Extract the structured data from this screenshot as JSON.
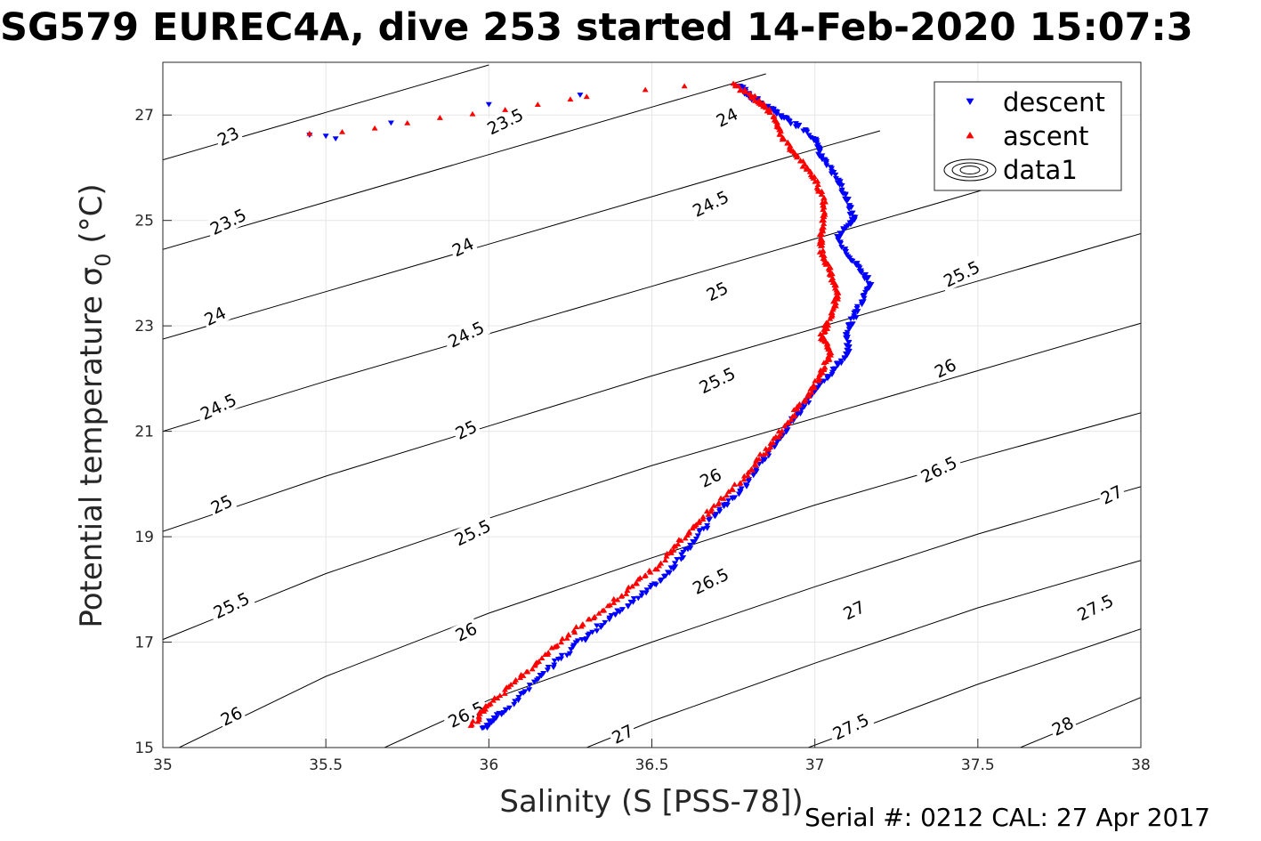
{
  "title": "SG579 EUREC4A, dive 253 started 14-Feb-2020 15:07:3",
  "footer": "Serial #: 0212  CAL: 27 Apr 2017",
  "colors": {
    "descent": "#0000ff",
    "ascent": "#ff0000",
    "contour": "#000000",
    "grid": "#e6e6e6"
  },
  "chart_data": {
    "type": "scatter",
    "xlabel": "Salinity (S [PSS-78])",
    "ylabel_main": "Potential temperature σ",
    "ylabel_sub": "0",
    "ylabel_unit": " (°C)",
    "xlim": [
      35,
      38
    ],
    "ylim": [
      15,
      28
    ],
    "xticks": [
      35,
      35.5,
      36,
      36.5,
      37,
      37.5,
      38
    ],
    "yticks": [
      15,
      17,
      19,
      21,
      23,
      25,
      27
    ],
    "xtick_labels": [
      "35",
      "35.5",
      "36",
      "36.5",
      "37",
      "37.5",
      "38"
    ],
    "ytick_labels": [
      "15",
      "17",
      "19",
      "21",
      "23",
      "25",
      "27"
    ],
    "grid": true,
    "legend": {
      "position": "top-right",
      "entries": [
        "descent",
        "ascent",
        "data1"
      ]
    },
    "contours": [
      {
        "level": 23,
        "points": [
          [
            35.0,
            26.15
          ],
          [
            35.5,
            27.05
          ],
          [
            36.0,
            27.95
          ]
        ]
      },
      {
        "level": 23.5,
        "points": [
          [
            35.0,
            24.45
          ],
          [
            35.5,
            25.35
          ],
          [
            36.0,
            26.25
          ],
          [
            36.5,
            27.15
          ],
          [
            36.85,
            27.78
          ]
        ]
      },
      {
        "level": 24,
        "points": [
          [
            35.0,
            22.75
          ],
          [
            35.5,
            23.65
          ],
          [
            36.0,
            24.55
          ],
          [
            36.5,
            25.45
          ],
          [
            37.0,
            26.35
          ],
          [
            37.2,
            26.7
          ]
        ]
      },
      {
        "level": 24.5,
        "points": [
          [
            35.0,
            21.0
          ],
          [
            35.5,
            21.95
          ],
          [
            36.0,
            22.85
          ],
          [
            36.5,
            23.75
          ],
          [
            37.0,
            24.65
          ],
          [
            37.5,
            25.55
          ],
          [
            37.75,
            26.0
          ]
        ]
      },
      {
        "level": 25,
        "points": [
          [
            35.0,
            19.1
          ],
          [
            35.5,
            20.15
          ],
          [
            36.0,
            21.1
          ],
          [
            36.5,
            22.05
          ],
          [
            37.0,
            22.95
          ],
          [
            37.5,
            23.85
          ],
          [
            38.0,
            24.75
          ]
        ]
      },
      {
        "level": 25.5,
        "points": [
          [
            35.0,
            17.05
          ],
          [
            35.5,
            18.3
          ],
          [
            36.0,
            19.35
          ],
          [
            36.5,
            20.35
          ],
          [
            37.0,
            21.25
          ],
          [
            37.5,
            22.15
          ],
          [
            38.0,
            23.05
          ]
        ]
      },
      {
        "level": 26,
        "points": [
          [
            35.05,
            15.0
          ],
          [
            35.5,
            16.35
          ],
          [
            36.0,
            17.55
          ],
          [
            36.5,
            18.6
          ],
          [
            37.0,
            19.6
          ],
          [
            37.5,
            20.5
          ],
          [
            38.0,
            21.35
          ]
        ]
      },
      {
        "level": 26.5,
        "points": [
          [
            35.68,
            15.0
          ],
          [
            36.0,
            15.9
          ],
          [
            36.5,
            17.0
          ],
          [
            37.0,
            18.05
          ],
          [
            37.5,
            19.05
          ],
          [
            38.0,
            19.95
          ]
        ]
      },
      {
        "level": 27,
        "points": [
          [
            36.3,
            15.0
          ],
          [
            36.5,
            15.5
          ],
          [
            37.0,
            16.6
          ],
          [
            37.5,
            17.65
          ],
          [
            38.0,
            18.55
          ]
        ]
      },
      {
        "level": 27.5,
        "points": [
          [
            36.98,
            15.0
          ],
          [
            37.5,
            16.2
          ],
          [
            38.0,
            17.25
          ]
        ]
      },
      {
        "level": 28,
        "points": [
          [
            37.63,
            15.0
          ],
          [
            38.0,
            15.95
          ]
        ]
      }
    ],
    "contour_labels": [
      {
        "text": "23",
        "x": 35.2,
        "y": 26.6,
        "angle": -26
      },
      {
        "text": "23.5",
        "x": 35.2,
        "y": 24.98,
        "angle": -26
      },
      {
        "text": "23.5",
        "x": 36.05,
        "y": 26.88,
        "angle": -26
      },
      {
        "text": "24",
        "x": 35.16,
        "y": 23.19,
        "angle": -26
      },
      {
        "text": "24",
        "x": 35.92,
        "y": 24.5,
        "angle": -26
      },
      {
        "text": "24",
        "x": 36.73,
        "y": 26.96,
        "angle": -26
      },
      {
        "text": "24.5",
        "x": 35.17,
        "y": 21.47,
        "angle": -26
      },
      {
        "text": "24.5",
        "x": 35.93,
        "y": 22.84,
        "angle": -26
      },
      {
        "text": "24.5",
        "x": 36.68,
        "y": 25.32,
        "angle": -26
      },
      {
        "text": "25",
        "x": 35.18,
        "y": 19.62,
        "angle": -26
      },
      {
        "text": "25",
        "x": 35.93,
        "y": 21.03,
        "angle": -26
      },
      {
        "text": "25",
        "x": 36.7,
        "y": 23.66,
        "angle": -26
      },
      {
        "text": "25.5",
        "x": 35.21,
        "y": 17.7,
        "angle": -26
      },
      {
        "text": "25.5",
        "x": 35.95,
        "y": 19.08,
        "angle": -26
      },
      {
        "text": "25.5",
        "x": 36.7,
        "y": 21.97,
        "angle": -26
      },
      {
        "text": "25.5",
        "x": 37.45,
        "y": 23.99,
        "angle": -26
      },
      {
        "text": "26",
        "x": 35.21,
        "y": 15.6,
        "angle": -26
      },
      {
        "text": "26",
        "x": 35.93,
        "y": 17.2,
        "angle": -26
      },
      {
        "text": "26",
        "x": 36.68,
        "y": 20.12,
        "angle": -26
      },
      {
        "text": "26",
        "x": 37.4,
        "y": 22.2,
        "angle": -26
      },
      {
        "text": "26.5",
        "x": 35.93,
        "y": 15.63,
        "angle": -26
      },
      {
        "text": "26.5",
        "x": 36.68,
        "y": 18.16,
        "angle": -26
      },
      {
        "text": "26.5",
        "x": 37.38,
        "y": 20.28,
        "angle": -26
      },
      {
        "text": "27",
        "x": 36.41,
        "y": 15.26,
        "angle": -26
      },
      {
        "text": "27",
        "x": 37.12,
        "y": 17.61,
        "angle": -26
      },
      {
        "text": "27",
        "x": 37.91,
        "y": 19.8,
        "angle": -26
      },
      {
        "text": "27.5",
        "x": 37.11,
        "y": 15.4,
        "angle": -26
      },
      {
        "text": "27.5",
        "x": 37.86,
        "y": 17.66,
        "angle": -26
      },
      {
        "text": "28",
        "x": 37.76,
        "y": 15.41,
        "angle": -26
      }
    ],
    "series": [
      {
        "name": "descent",
        "marker": "triangle-down",
        "profile": [
          [
            35.98,
            15.35
          ],
          [
            36.05,
            15.7
          ],
          [
            36.15,
            16.3
          ],
          [
            36.25,
            16.85
          ],
          [
            36.35,
            17.35
          ],
          [
            36.45,
            17.8
          ],
          [
            36.55,
            18.3
          ],
          [
            36.62,
            18.85
          ],
          [
            36.7,
            19.45
          ],
          [
            36.78,
            19.9
          ],
          [
            36.86,
            20.6
          ],
          [
            36.92,
            21.1
          ],
          [
            36.98,
            21.6
          ],
          [
            37.05,
            22.1
          ],
          [
            37.1,
            22.5
          ],
          [
            37.1,
            22.9
          ],
          [
            37.13,
            23.3
          ],
          [
            37.17,
            23.8
          ],
          [
            37.12,
            24.2
          ],
          [
            37.07,
            24.7
          ],
          [
            37.12,
            25.0
          ],
          [
            37.1,
            25.4
          ],
          [
            37.07,
            25.8
          ],
          [
            37.02,
            26.2
          ],
          [
            37.0,
            26.55
          ],
          [
            36.92,
            26.9
          ],
          [
            36.87,
            27.1
          ],
          [
            36.8,
            27.35
          ],
          [
            36.77,
            27.55
          ]
        ],
        "extra": [
          [
            35.45,
            26.62
          ],
          [
            35.5,
            26.6
          ],
          [
            35.53,
            26.55
          ],
          [
            35.7,
            26.85
          ],
          [
            36.0,
            27.2
          ],
          [
            36.28,
            27.38
          ]
        ]
      },
      {
        "name": "ascent",
        "marker": "triangle-up",
        "profile": [
          [
            35.95,
            15.45
          ],
          [
            36.0,
            15.8
          ],
          [
            36.1,
            16.35
          ],
          [
            36.2,
            16.9
          ],
          [
            36.3,
            17.4
          ],
          [
            36.42,
            17.95
          ],
          [
            36.52,
            18.45
          ],
          [
            36.6,
            19.0
          ],
          [
            36.68,
            19.5
          ],
          [
            36.78,
            20.1
          ],
          [
            36.85,
            20.65
          ],
          [
            36.92,
            21.2
          ],
          [
            36.98,
            21.7
          ],
          [
            37.02,
            22.1
          ],
          [
            37.05,
            22.5
          ],
          [
            37.02,
            22.8
          ],
          [
            37.05,
            23.2
          ],
          [
            37.07,
            23.6
          ],
          [
            37.05,
            24.0
          ],
          [
            37.02,
            24.4
          ],
          [
            37.02,
            24.8
          ],
          [
            37.03,
            25.3
          ],
          [
            37.0,
            25.8
          ],
          [
            36.95,
            26.2
          ],
          [
            36.9,
            26.6
          ],
          [
            36.87,
            27.0
          ],
          [
            36.82,
            27.3
          ],
          [
            36.75,
            27.6
          ]
        ],
        "extra": [
          [
            35.45,
            26.65
          ],
          [
            35.55,
            26.68
          ],
          [
            35.65,
            26.75
          ],
          [
            35.75,
            26.85
          ],
          [
            35.85,
            26.95
          ],
          [
            35.95,
            27.02
          ],
          [
            36.05,
            27.1
          ],
          [
            36.15,
            27.2
          ],
          [
            36.25,
            27.3
          ],
          [
            36.3,
            27.35
          ],
          [
            36.48,
            27.48
          ],
          [
            36.6,
            27.55
          ]
        ]
      }
    ]
  }
}
